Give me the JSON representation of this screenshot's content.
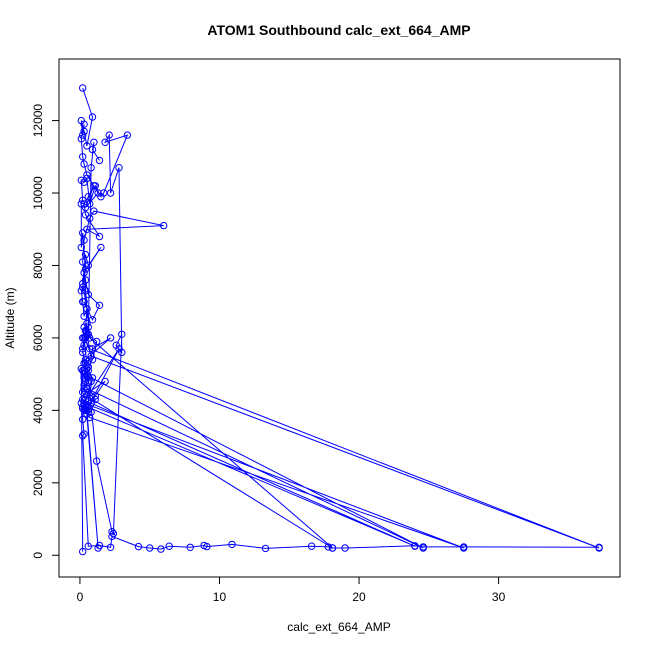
{
  "chart_data": {
    "type": "line",
    "title": "ATOM1 Southbound calc_ext_664_AMP",
    "xlabel": "calc_ext_664_AMP",
    "ylabel": "Altitude (m)",
    "xlim": [
      -1.5,
      38.7
    ],
    "ylim": [
      -600,
      13700
    ],
    "x_ticks": [
      0,
      10,
      20,
      30
    ],
    "y_ticks": [
      0,
      2000,
      4000,
      6000,
      8000,
      10000,
      12000
    ],
    "x_tick_labels": [
      "0",
      "10",
      "20",
      "30"
    ],
    "y_tick_labels": [
      "0",
      "2000",
      "4000",
      "6000",
      "8000",
      "10000",
      "12000"
    ],
    "grid": false,
    "legend": "none",
    "marker": "open-circle",
    "color": "#0000ff",
    "series": [
      {
        "x": [
          0.2,
          0.1,
          0.3,
          0.4,
          0.2,
          0.5,
          0.3,
          0.6,
          0.4,
          0.8,
          37.2,
          0.7,
          0.5,
          1.2,
          0.9,
          0.6,
          0.4,
          0.3,
          24.6,
          0.5,
          1.1,
          0.8,
          0.6,
          2.8,
          0.4,
          0.2,
          0.3,
          0.6,
          0.9,
          0.5,
          1.3,
          0.4,
          0.2,
          0.5,
          0.7,
          27.5,
          0.3,
          0.6,
          1.8,
          0.4,
          0.2,
          24.0,
          0.5,
          0.8,
          1.1,
          0.3,
          0.6,
          0.9,
          2.2,
          0.4,
          0.3,
          0.8,
          0.5,
          18.1,
          0.7,
          0.4,
          0.3,
          1.5,
          0.6,
          0.4,
          0.2,
          0.5,
          0.3,
          0.9,
          1.4,
          0.6,
          0.4,
          0.2,
          0.3,
          0.7,
          1.0,
          6.0,
          0.5,
          1.4,
          0.4,
          0.3,
          0.6,
          1.0,
          0.4,
          1.3,
          0.5,
          0.3,
          0.2,
          0.1,
          0.3,
          0.2,
          0.1,
          0.3,
          0.5,
          0.9,
          0.2
        ],
        "y": [
          100,
          5150,
          4900,
          5300,
          5600,
          6400,
          5800,
          6300,
          6000,
          5500,
          200,
          5700,
          6100,
          5900,
          5400,
          5200,
          4800,
          5000,
          200,
          4600,
          4400,
          4200,
          4100,
          5700,
          4300,
          4500,
          4700,
          5100,
          4900,
          4000,
          200,
          4300,
          4100,
          3900,
          3800,
          200,
          4200,
          4500,
          4800,
          4000,
          4300,
          250,
          4100,
          3950,
          4300,
          4600,
          4900,
          5700,
          6000,
          5400,
          5100,
          4800,
          4400,
          200,
          6000,
          7300,
          7800,
          8500,
          8000,
          8300,
          7500,
          6800,
          7000,
          6500,
          6900,
          7200,
          7600,
          8100,
          8700,
          9300,
          9500,
          9100,
          9000,
          8800,
          9400,
          9700,
          9900,
          10200,
          9600,
          10000,
          10500,
          10800,
          11000,
          11500,
          11900,
          11600,
          12000,
          11700,
          11300,
          12100,
          12900
        ]
      },
      {
        "x": [
          37.2,
          27.5,
          24.6,
          24.0,
          19.0,
          18.1,
          17.8,
          16.6,
          13.3,
          10.9,
          9.1,
          8.9,
          7.9,
          6.4,
          5.8,
          5.0,
          4.2,
          2.3,
          2.2,
          1.4,
          0.6,
          0.2,
          0.3,
          0.2,
          0.2,
          0.1,
          0.2,
          0.3,
          0.2,
          0.3,
          1.2,
          2.3,
          2.4,
          3.0,
          2.6,
          3.0,
          2.8,
          2.2,
          2.1,
          1.8,
          3.4,
          1.7,
          1.5,
          1.1,
          0.7,
          0.5,
          0.3,
          0.1,
          0.2,
          0.1,
          0.1,
          0.2,
          0.4,
          0.2,
          0.1,
          0.2,
          0.3,
          0.5,
          0.4,
          0.3,
          0.2,
          0.6,
          0.8,
          1.0,
          0.9,
          1.4
        ],
        "y": [
          220,
          230,
          230,
          260,
          200,
          200,
          230,
          250,
          190,
          300,
          240,
          270,
          220,
          250,
          170,
          200,
          240,
          520,
          220,
          270,
          250,
          3300,
          3350,
          3750,
          4050,
          4200,
          5100,
          5300,
          5700,
          6000,
          2600,
          650,
          600,
          6100,
          5800,
          5600,
          10700,
          10000,
          11600,
          11400,
          11600,
          10000,
          9900,
          10200,
          9700,
          10400,
          10300,
          10350,
          9800,
          9700,
          8500,
          8900,
          7900,
          7400,
          7300,
          7000,
          6600,
          6800,
          6200,
          6300,
          6000,
          6100,
          10700,
          11400,
          11200,
          10900
        ]
      }
    ]
  }
}
